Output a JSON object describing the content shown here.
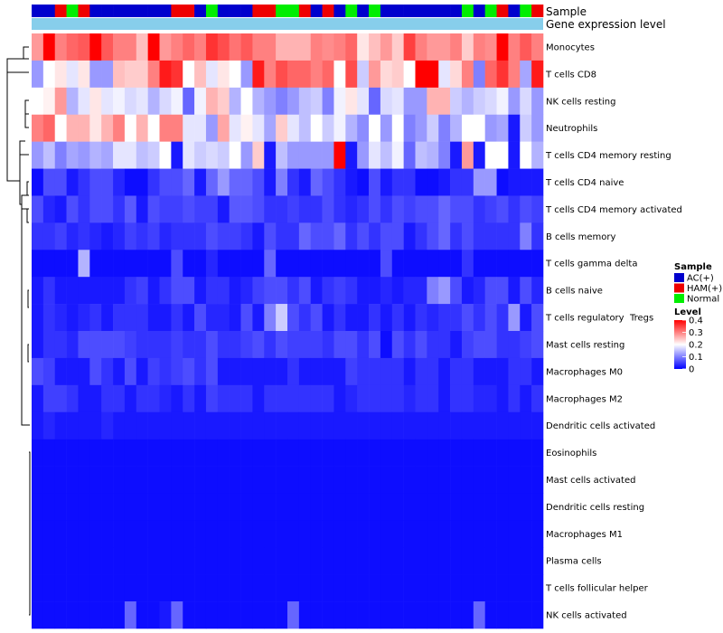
{
  "chart_data": {
    "type": "heatmap",
    "annotations": {
      "sample_label": "Sample",
      "gene_label": "Gene expression level",
      "sample_groups": [
        "AC(+)",
        "AC(+)",
        "HAM(+)",
        "Normal",
        "HAM(+)",
        "AC(+)",
        "AC(+)",
        "AC(+)",
        "AC(+)",
        "AC(+)",
        "AC(+)",
        "AC(+)",
        "HAM(+)",
        "HAM(+)",
        "AC(+)",
        "Normal",
        "AC(+)",
        "AC(+)",
        "AC(+)",
        "HAM(+)",
        "HAM(+)",
        "Normal",
        "Normal",
        "HAM(+)",
        "AC(+)",
        "HAM(+)",
        "AC(+)",
        "Normal",
        "AC(+)",
        "Normal",
        "AC(+)",
        "AC(+)",
        "AC(+)",
        "AC(+)",
        "AC(+)",
        "AC(+)",
        "AC(+)",
        "Normal",
        "AC(+)",
        "Normal",
        "HAM(+)",
        "AC(+)",
        "Normal",
        "HAM(+)"
      ]
    },
    "rows": [
      "Monocytes",
      "T cells CD8",
      "NK cells resting",
      "Neutrophils",
      "T cells CD4 memory resting",
      "T cells CD4 naive",
      "T cells CD4 memory activated",
      "B cells memory",
      "T cells gamma delta",
      "B cells naive",
      "T cells regulatory  Tregs",
      "Mast cells resting",
      "Macrophages M0",
      "Macrophages M2",
      "Dendritic cells activated",
      "Eosinophils",
      "Mast cells activated",
      "Dendritic cells resting",
      "Macrophages M1",
      "Plasma cells",
      "T cells follicular helper",
      "NK cells activated"
    ],
    "values": [
      [
        0.28,
        0.4,
        0.3,
        0.32,
        0.33,
        0.4,
        0.33,
        0.3,
        0.3,
        0.25,
        0.4,
        0.28,
        0.3,
        0.32,
        0.3,
        0.36,
        0.34,
        0.31,
        0.33,
        0.3,
        0.3,
        0.26,
        0.26,
        0.26,
        0.3,
        0.29,
        0.3,
        0.32,
        0.22,
        0.25,
        0.28,
        0.24,
        0.35,
        0.3,
        0.28,
        0.28,
        0.3,
        0.24,
        0.3,
        0.29,
        0.4,
        0.3,
        0.33,
        0.3
      ],
      [
        0.12,
        0.2,
        0.22,
        0.18,
        0.22,
        0.12,
        0.12,
        0.25,
        0.24,
        0.24,
        0.3,
        0.38,
        0.36,
        0.2,
        0.25,
        0.18,
        0.22,
        0.2,
        0.12,
        0.38,
        0.3,
        0.34,
        0.32,
        0.32,
        0.3,
        0.32,
        0.2,
        0.34,
        0.16,
        0.28,
        0.23,
        0.24,
        0.2,
        0.4,
        0.4,
        0.18,
        0.23,
        0.3,
        0.1,
        0.32,
        0.36,
        0.3,
        0.13,
        0.38
      ],
      [
        0.2,
        0.21,
        0.28,
        0.14,
        0.18,
        0.22,
        0.18,
        0.19,
        0.17,
        0.18,
        0.14,
        0.17,
        0.19,
        0.08,
        0.19,
        0.26,
        0.24,
        0.14,
        0.2,
        0.14,
        0.12,
        0.1,
        0.12,
        0.15,
        0.16,
        0.1,
        0.19,
        0.22,
        0.18,
        0.08,
        0.17,
        0.18,
        0.12,
        0.12,
        0.26,
        0.26,
        0.16,
        0.14,
        0.16,
        0.17,
        0.19,
        0.12,
        0.17,
        0.12
      ],
      [
        0.3,
        0.32,
        0.2,
        0.26,
        0.26,
        0.22,
        0.26,
        0.3,
        0.2,
        0.26,
        0.2,
        0.3,
        0.3,
        0.18,
        0.18,
        0.12,
        0.27,
        0.18,
        0.21,
        0.18,
        0.13,
        0.24,
        0.18,
        0.15,
        0.2,
        0.16,
        0.19,
        0.14,
        0.11,
        0.2,
        0.12,
        0.2,
        0.1,
        0.12,
        0.16,
        0.1,
        0.14,
        0.2,
        0.2,
        0.12,
        0.13,
        0.02,
        0.16,
        0.12
      ],
      [
        0.12,
        0.15,
        0.1,
        0.13,
        0.12,
        0.14,
        0.13,
        0.18,
        0.18,
        0.15,
        0.16,
        0.2,
        0.02,
        0.18,
        0.16,
        0.17,
        0.16,
        0.2,
        0.12,
        0.24,
        0.02,
        0.15,
        0.12,
        0.12,
        0.12,
        0.12,
        0.4,
        0.02,
        0.12,
        0.18,
        0.15,
        0.19,
        0.08,
        0.15,
        0.14,
        0.1,
        0.02,
        0.28,
        0.02,
        0.2,
        0.2,
        0.02,
        0.2,
        0.14
      ],
      [
        0.01,
        0.06,
        0.06,
        0.02,
        0.04,
        0.06,
        0.06,
        0.03,
        0.01,
        0.01,
        0.04,
        0.06,
        0.06,
        0.08,
        0.02,
        0.08,
        0.12,
        0.08,
        0.08,
        0.06,
        0.02,
        0.1,
        0.04,
        0.02,
        0.08,
        0.06,
        0.04,
        0.02,
        0.01,
        0.06,
        0.02,
        0.04,
        0.04,
        0.01,
        0.01,
        0.02,
        0.04,
        0.04,
        0.12,
        0.12,
        0.01,
        0.02,
        0.02,
        0.02
      ],
      [
        0.06,
        0.03,
        0.02,
        0.06,
        0.04,
        0.06,
        0.06,
        0.04,
        0.07,
        0.02,
        0.06,
        0.05,
        0.05,
        0.06,
        0.05,
        0.05,
        0.02,
        0.07,
        0.07,
        0.06,
        0.04,
        0.04,
        0.05,
        0.04,
        0.04,
        0.06,
        0.04,
        0.03,
        0.04,
        0.06,
        0.04,
        0.06,
        0.05,
        0.06,
        0.06,
        0.08,
        0.06,
        0.06,
        0.04,
        0.05,
        0.06,
        0.04,
        0.06,
        0.05
      ],
      [
        0.04,
        0.04,
        0.05,
        0.03,
        0.04,
        0.03,
        0.02,
        0.03,
        0.05,
        0.04,
        0.05,
        0.03,
        0.04,
        0.04,
        0.04,
        0.06,
        0.05,
        0.05,
        0.04,
        0.02,
        0.06,
        0.04,
        0.04,
        0.08,
        0.06,
        0.06,
        0.08,
        0.04,
        0.06,
        0.04,
        0.06,
        0.06,
        0.02,
        0.04,
        0.06,
        0.08,
        0.04,
        0.06,
        0.04,
        0.04,
        0.04,
        0.04,
        0.1,
        0.04
      ],
      [
        0.01,
        0.01,
        0.01,
        0.01,
        0.14,
        0.01,
        0.01,
        0.01,
        0.01,
        0.01,
        0.01,
        0.01,
        0.06,
        0.01,
        0.01,
        0.03,
        0.01,
        0.01,
        0.01,
        0.01,
        0.08,
        0.01,
        0.01,
        0.01,
        0.01,
        0.01,
        0.01,
        0.01,
        0.01,
        0.01,
        0.06,
        0.01,
        0.01,
        0.01,
        0.01,
        0.01,
        0.01,
        0.04,
        0.01,
        0.01,
        0.01,
        0.01,
        0.01,
        0.01
      ],
      [
        0.02,
        0.04,
        0.02,
        0.02,
        0.02,
        0.02,
        0.02,
        0.02,
        0.04,
        0.05,
        0.02,
        0.04,
        0.06,
        0.06,
        0.02,
        0.04,
        0.04,
        0.02,
        0.03,
        0.05,
        0.06,
        0.06,
        0.04,
        0.06,
        0.02,
        0.04,
        0.05,
        0.04,
        0.02,
        0.02,
        0.03,
        0.02,
        0.03,
        0.03,
        0.1,
        0.12,
        0.06,
        0.02,
        0.03,
        0.06,
        0.06,
        0.02,
        0.06,
        0.03
      ],
      [
        0.02,
        0.04,
        0.03,
        0.02,
        0.03,
        0.04,
        0.02,
        0.04,
        0.04,
        0.04,
        0.02,
        0.02,
        0.04,
        0.02,
        0.06,
        0.03,
        0.03,
        0.02,
        0.06,
        0.02,
        0.1,
        0.16,
        0.06,
        0.04,
        0.06,
        0.02,
        0.04,
        0.02,
        0.02,
        0.04,
        0.02,
        0.04,
        0.02,
        0.04,
        0.03,
        0.04,
        0.04,
        0.06,
        0.04,
        0.06,
        0.04,
        0.12,
        0.02,
        0.06
      ],
      [
        0.02,
        0.04,
        0.04,
        0.03,
        0.06,
        0.06,
        0.06,
        0.06,
        0.05,
        0.04,
        0.04,
        0.04,
        0.05,
        0.04,
        0.04,
        0.06,
        0.04,
        0.04,
        0.05,
        0.06,
        0.04,
        0.06,
        0.05,
        0.05,
        0.05,
        0.04,
        0.06,
        0.06,
        0.04,
        0.06,
        0.01,
        0.06,
        0.04,
        0.06,
        0.04,
        0.04,
        0.02,
        0.05,
        0.06,
        0.06,
        0.04,
        0.04,
        0.05,
        0.06
      ],
      [
        0.06,
        0.05,
        0.02,
        0.02,
        0.02,
        0.06,
        0.04,
        0.02,
        0.06,
        0.02,
        0.05,
        0.04,
        0.05,
        0.06,
        0.04,
        0.06,
        0.02,
        0.02,
        0.02,
        0.02,
        0.02,
        0.02,
        0.04,
        0.02,
        0.02,
        0.02,
        0.02,
        0.05,
        0.04,
        0.04,
        0.04,
        0.04,
        0.02,
        0.04,
        0.04,
        0.02,
        0.04,
        0.04,
        0.02,
        0.02,
        0.02,
        0.04,
        0.04,
        0.02
      ],
      [
        0.02,
        0.05,
        0.05,
        0.04,
        0.02,
        0.02,
        0.04,
        0.04,
        0.02,
        0.04,
        0.04,
        0.03,
        0.02,
        0.04,
        0.02,
        0.05,
        0.04,
        0.04,
        0.04,
        0.02,
        0.04,
        0.04,
        0.04,
        0.04,
        0.04,
        0.04,
        0.02,
        0.03,
        0.04,
        0.04,
        0.04,
        0.04,
        0.03,
        0.04,
        0.04,
        0.02,
        0.04,
        0.04,
        0.03,
        0.03,
        0.02,
        0.04,
        0.02,
        0.04
      ],
      [
        0.02,
        0.03,
        0.02,
        0.02,
        0.02,
        0.02,
        0.03,
        0.02,
        0.02,
        0.02,
        0.02,
        0.02,
        0.02,
        0.02,
        0.02,
        0.02,
        0.02,
        0.02,
        0.02,
        0.02,
        0.02,
        0.02,
        0.02,
        0.02,
        0.02,
        0.02,
        0.02,
        0.02,
        0.02,
        0.02,
        0.02,
        0.02,
        0.02,
        0.02,
        0.02,
        0.02,
        0.02,
        0.02,
        0.02,
        0.02,
        0.02,
        0.02,
        0.02,
        0.02
      ],
      [
        0.01,
        0.01,
        0.01,
        0.01,
        0.01,
        0.01,
        0.01,
        0.01,
        0.01,
        0.01,
        0.01,
        0.01,
        0.01,
        0.01,
        0.01,
        0.01,
        0.01,
        0.01,
        0.01,
        0.01,
        0.01,
        0.01,
        0.01,
        0.01,
        0.01,
        0.01,
        0.01,
        0.01,
        0.01,
        0.01,
        0.01,
        0.01,
        0.01,
        0.01,
        0.01,
        0.01,
        0.01,
        0.01,
        0.01,
        0.01,
        0.01,
        0.01,
        0.01,
        0.01
      ],
      [
        0.01,
        0.01,
        0.01,
        0.01,
        0.01,
        0.01,
        0.01,
        0.01,
        0.01,
        0.01,
        0.01,
        0.01,
        0.01,
        0.01,
        0.01,
        0.01,
        0.01,
        0.01,
        0.01,
        0.01,
        0.01,
        0.01,
        0.01,
        0.01,
        0.01,
        0.01,
        0.01,
        0.01,
        0.01,
        0.01,
        0.01,
        0.01,
        0.01,
        0.01,
        0.01,
        0.01,
        0.01,
        0.01,
        0.01,
        0.01,
        0.01,
        0.01,
        0.01,
        0.01
      ],
      [
        0.01,
        0.01,
        0.01,
        0.01,
        0.01,
        0.01,
        0.01,
        0.01,
        0.01,
        0.01,
        0.01,
        0.01,
        0.01,
        0.01,
        0.01,
        0.01,
        0.01,
        0.01,
        0.01,
        0.01,
        0.01,
        0.01,
        0.01,
        0.01,
        0.01,
        0.01,
        0.01,
        0.01,
        0.01,
        0.01,
        0.01,
        0.01,
        0.01,
        0.01,
        0.01,
        0.01,
        0.01,
        0.01,
        0.01,
        0.01,
        0.01,
        0.01,
        0.01,
        0.01
      ],
      [
        0.01,
        0.01,
        0.01,
        0.01,
        0.01,
        0.01,
        0.01,
        0.01,
        0.01,
        0.01,
        0.01,
        0.01,
        0.01,
        0.01,
        0.01,
        0.01,
        0.01,
        0.01,
        0.01,
        0.01,
        0.01,
        0.01,
        0.01,
        0.01,
        0.01,
        0.01,
        0.01,
        0.01,
        0.01,
        0.01,
        0.01,
        0.01,
        0.01,
        0.01,
        0.01,
        0.01,
        0.01,
        0.01,
        0.01,
        0.01,
        0.01,
        0.01,
        0.01,
        0.01
      ],
      [
        0.01,
        0.01,
        0.01,
        0.01,
        0.01,
        0.01,
        0.01,
        0.01,
        0.01,
        0.01,
        0.01,
        0.01,
        0.01,
        0.01,
        0.01,
        0.01,
        0.01,
        0.01,
        0.01,
        0.01,
        0.01,
        0.01,
        0.01,
        0.01,
        0.01,
        0.01,
        0.01,
        0.01,
        0.01,
        0.01,
        0.01,
        0.01,
        0.01,
        0.01,
        0.01,
        0.01,
        0.01,
        0.01,
        0.01,
        0.01,
        0.01,
        0.01,
        0.01,
        0.01
      ],
      [
        0.01,
        0.01,
        0.01,
        0.01,
        0.01,
        0.01,
        0.01,
        0.01,
        0.01,
        0.01,
        0.01,
        0.01,
        0.01,
        0.01,
        0.01,
        0.01,
        0.01,
        0.01,
        0.01,
        0.01,
        0.01,
        0.01,
        0.01,
        0.01,
        0.01,
        0.01,
        0.01,
        0.01,
        0.01,
        0.01,
        0.01,
        0.01,
        0.01,
        0.01,
        0.01,
        0.01,
        0.01,
        0.01,
        0.01,
        0.01,
        0.01,
        0.01,
        0.01,
        0.01
      ],
      [
        0.01,
        0.01,
        0.01,
        0.01,
        0.01,
        0.01,
        0.01,
        0.01,
        0.08,
        0.01,
        0.01,
        0.02,
        0.08,
        0.01,
        0.01,
        0.01,
        0.01,
        0.01,
        0.01,
        0.01,
        0.01,
        0.01,
        0.08,
        0.01,
        0.01,
        0.01,
        0.01,
        0.01,
        0.01,
        0.01,
        0.01,
        0.01,
        0.01,
        0.01,
        0.01,
        0.01,
        0.01,
        0.01,
        0.08,
        0.01,
        0.01,
        0.01,
        0.01,
        0.01
      ]
    ],
    "legend_sample": {
      "title": "Sample",
      "items": [
        {
          "label": "AC(+)",
          "color": "#0000CD"
        },
        {
          "label": "HAM(+)",
          "color": "#EE0000"
        },
        {
          "label": "Normal",
          "color": "#00EE00"
        }
      ]
    },
    "legend_level": {
      "title": "Level",
      "ticks": [
        "0.4",
        "0.3",
        "0.2",
        "0.1",
        "0"
      ],
      "range": [
        0,
        0.4
      ]
    },
    "colors": {
      "low": "#0000FF",
      "mid": "#FFFFFF",
      "high": "#FF0000",
      "gene_bar": "#87CEEB"
    }
  }
}
